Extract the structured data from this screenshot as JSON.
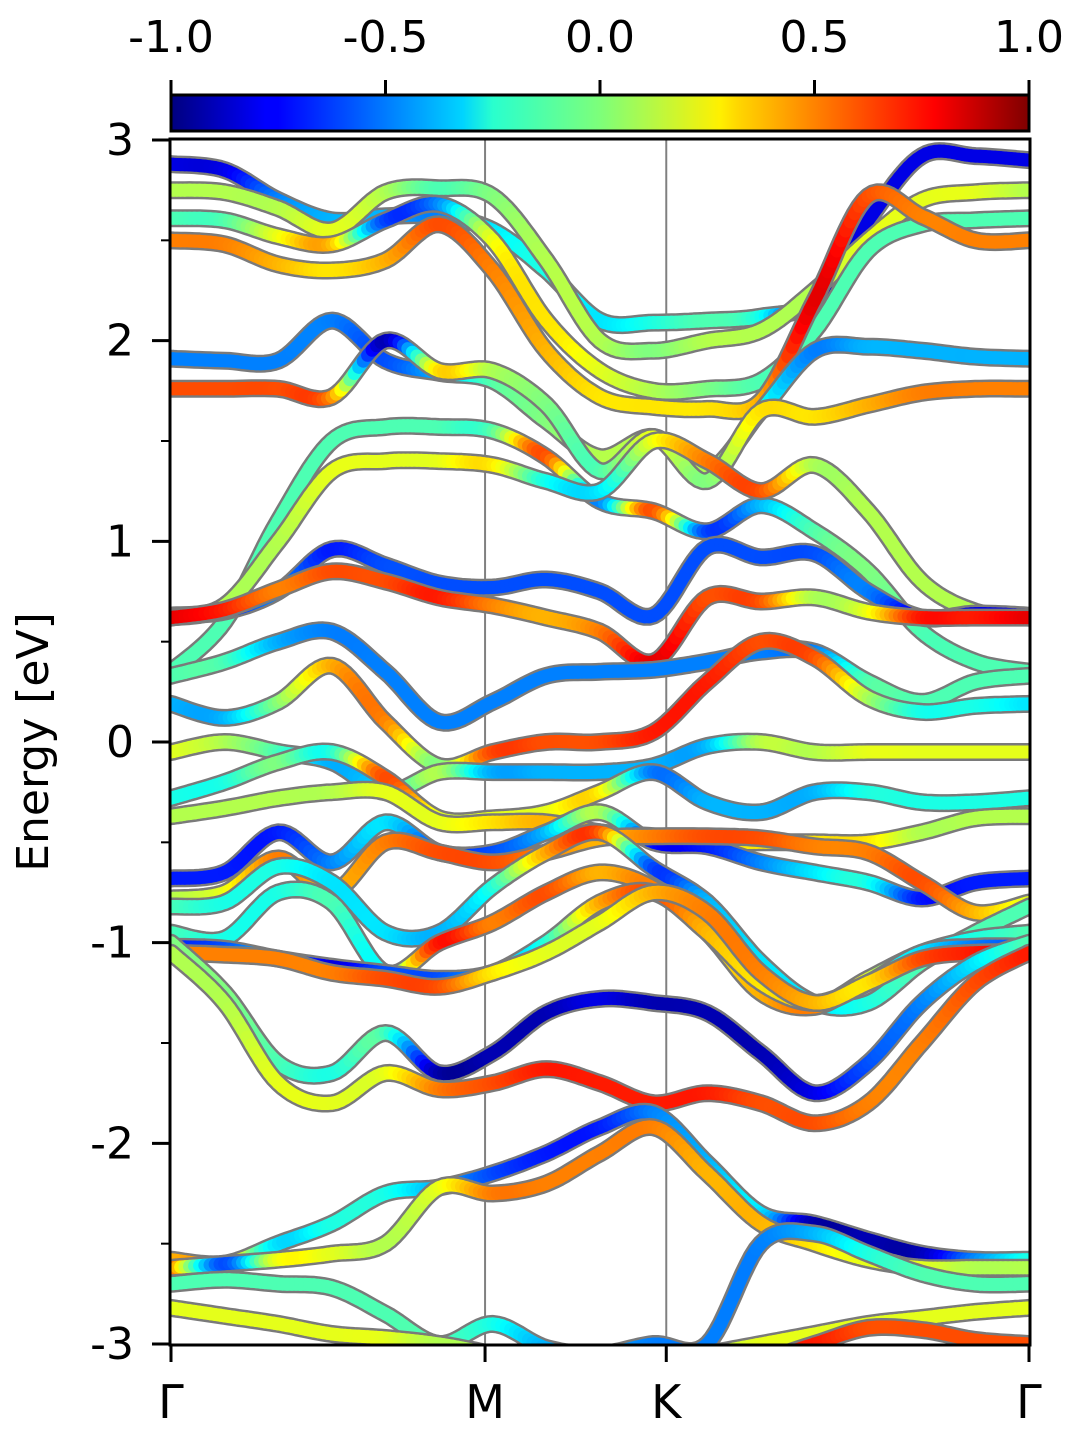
{
  "chart_data": {
    "type": "line",
    "ylabel": "Energy [eV]",
    "ylim": [
      -3,
      3
    ],
    "yticks": [
      -3,
      -2,
      -1,
      0,
      1,
      2,
      3
    ],
    "ytick_labels": [
      "-3",
      "-2",
      "-1",
      "0",
      "1",
      "2",
      "3"
    ],
    "kpath": {
      "labels": [
        "Γ",
        "M",
        "K",
        "Γ"
      ],
      "positions": [
        0,
        1,
        1.577,
        2.732
      ]
    },
    "colorbar": {
      "colormap": "jet",
      "range": [
        -1.0,
        1.0
      ],
      "ticks": [
        -1.0,
        -0.5,
        0.0,
        0.5,
        1.0
      ],
      "tick_labels": [
        "-1.0",
        "-0.5",
        "0.0",
        "0.5",
        "1.0"
      ],
      "location": "top"
    },
    "series": [
      {
        "y": [
          2.88,
          2.85,
          2.7,
          2.6,
          2.62,
          2.62,
          2.55,
          2.35,
          2.1,
          2.09,
          2.1,
          2.12,
          2.2,
          2.6,
          2.92,
          2.92,
          2.9
        ],
        "c": [
          -0.8,
          -0.8,
          -0.5,
          -0.4,
          -0.4,
          -0.5,
          -0.3,
          -0.2,
          -0.3,
          -0.2,
          -0.1,
          -0.2,
          -0.8,
          -0.8,
          -0.8,
          -0.8,
          -0.8
        ]
      },
      {
        "y": [
          2.75,
          2.74,
          2.66,
          2.55,
          2.74,
          2.76,
          2.72,
          2.4,
          2.0,
          1.95,
          2.0,
          2.05,
          2.25,
          2.5,
          2.7,
          2.74,
          2.75
        ],
        "c": [
          0.1,
          0.1,
          0.1,
          0.2,
          0.1,
          -0.1,
          0.0,
          0.1,
          0.1,
          0.0,
          0.1,
          0.1,
          0.1,
          0.2,
          0.2,
          0.2,
          0.1
        ]
      },
      {
        "y": [
          2.61,
          2.6,
          2.52,
          2.48,
          2.6,
          2.68,
          2.5,
          2.1,
          1.85,
          1.75,
          1.76,
          1.8,
          2.05,
          2.45,
          2.58,
          2.6,
          2.61
        ],
        "c": [
          -0.1,
          -0.1,
          0.2,
          0.4,
          -0.6,
          -0.5,
          0.2,
          0.3,
          0.2,
          0.1,
          0.0,
          -0.1,
          -0.1,
          -0.1,
          -0.1,
          -0.1,
          -0.1
        ]
      },
      {
        "y": [
          2.5,
          2.48,
          2.38,
          2.35,
          2.4,
          2.58,
          2.35,
          1.95,
          1.72,
          1.67,
          1.66,
          1.7,
          2.2,
          2.72,
          2.62,
          2.5,
          2.5
        ],
        "c": [
          0.5,
          0.5,
          0.4,
          0.3,
          0.4,
          0.6,
          0.5,
          0.4,
          0.3,
          0.3,
          0.3,
          0.4,
          0.8,
          0.6,
          0.5,
          0.5,
          0.5
        ]
      },
      {
        "y": [
          1.91,
          1.9,
          1.9,
          2.1,
          1.9,
          1.84,
          1.8,
          1.6,
          1.42,
          1.52,
          1.35,
          1.65,
          1.95,
          1.97,
          1.95,
          1.92,
          1.91
        ],
        "c": [
          -0.5,
          -0.5,
          -0.5,
          -0.5,
          -0.6,
          -0.4,
          -0.1,
          0.0,
          0.1,
          0.1,
          0.1,
          -0.2,
          -0.5,
          -0.4,
          -0.4,
          -0.4,
          -0.4
        ]
      },
      {
        "y": [
          1.76,
          1.76,
          1.76,
          1.72,
          2.0,
          1.85,
          1.85,
          1.68,
          1.35,
          1.52,
          1.3,
          1.65,
          1.62,
          1.68,
          1.74,
          1.76,
          1.76
        ],
        "c": [
          0.6,
          0.6,
          0.6,
          0.5,
          -0.9,
          0.3,
          0.1,
          0.0,
          -0.1,
          0.2,
          0.0,
          0.3,
          0.3,
          0.4,
          0.5,
          0.5,
          0.5
        ]
      },
      {
        "y": [
          0.35,
          0.6,
          1.1,
          1.5,
          1.57,
          1.57,
          1.55,
          1.42,
          1.2,
          1.15,
          1.05,
          1.18,
          1.05,
          0.85,
          0.55,
          0.4,
          0.35
        ],
        "c": [
          -0.1,
          -0.1,
          -0.1,
          -0.1,
          -0.1,
          -0.1,
          -0.1,
          0.6,
          -0.5,
          0.6,
          -0.6,
          -0.4,
          -0.1,
          0.0,
          -0.1,
          -0.1,
          -0.1
        ]
      },
      {
        "y": [
          0.62,
          0.68,
          1.0,
          1.35,
          1.4,
          1.4,
          1.38,
          1.3,
          1.25,
          1.5,
          1.4,
          1.25,
          1.38,
          1.15,
          0.8,
          0.65,
          0.62
        ],
        "c": [
          0.2,
          0.1,
          0.1,
          0.2,
          0.2,
          0.2,
          0.3,
          -0.2,
          -0.3,
          0.2,
          0.5,
          0.6,
          0.1,
          0.1,
          0.1,
          0.1,
          0.1
        ]
      },
      {
        "y": [
          0.63,
          0.65,
          0.75,
          0.96,
          0.88,
          0.79,
          0.77,
          0.81,
          0.75,
          0.63,
          0.97,
          0.92,
          0.94,
          0.75,
          0.62,
          0.64,
          0.63
        ],
        "c": [
          -0.7,
          -0.7,
          -0.5,
          -0.7,
          -0.6,
          -0.6,
          -0.6,
          -0.6,
          -0.6,
          -0.6,
          -0.6,
          -0.6,
          -0.6,
          -0.5,
          -0.8,
          -0.8,
          -0.8
        ]
      },
      {
        "y": [
          0.62,
          0.66,
          0.76,
          0.85,
          0.8,
          0.72,
          0.68,
          0.62,
          0.55,
          0.4,
          0.72,
          0.7,
          0.72,
          0.65,
          0.62,
          0.62,
          0.62
        ],
        "c": [
          0.8,
          0.7,
          0.5,
          0.6,
          0.6,
          0.7,
          0.5,
          0.4,
          0.5,
          0.8,
          0.6,
          0.6,
          0.1,
          0.2,
          0.7,
          0.7,
          0.8
        ]
      },
      {
        "y": [
          0.33,
          0.4,
          0.5,
          0.55,
          0.35,
          0.1,
          0.2,
          0.33,
          0.35,
          0.36,
          0.4,
          0.45,
          0.45,
          0.3,
          0.2,
          0.3,
          0.33
        ],
        "c": [
          -0.1,
          -0.1,
          -0.4,
          -0.5,
          -0.5,
          -0.5,
          -0.5,
          -0.5,
          -0.5,
          -0.5,
          -0.5,
          -0.5,
          -0.5,
          -0.1,
          -0.1,
          -0.1,
          -0.1
        ]
      },
      {
        "y": [
          0.19,
          0.12,
          0.2,
          0.38,
          0.1,
          -0.12,
          -0.05,
          0.0,
          0.0,
          0.05,
          0.3,
          0.5,
          0.42,
          0.22,
          0.15,
          0.18,
          0.19
        ],
        "c": [
          -0.4,
          -0.4,
          0.0,
          0.4,
          0.5,
          0.0,
          0.6,
          0.6,
          0.6,
          0.7,
          0.7,
          0.6,
          0.6,
          0.1,
          -0.2,
          -0.2,
          -0.3
        ]
      },
      {
        "y": [
          -0.05,
          0.0,
          -0.05,
          -0.1,
          -0.25,
          -0.15,
          -0.15,
          -0.15,
          -0.15,
          -0.12,
          -0.02,
          0.0,
          -0.05,
          -0.05,
          -0.05,
          -0.05,
          -0.05
        ],
        "c": [
          0.2,
          0.1,
          -0.1,
          -0.4,
          -0.3,
          0.1,
          -0.4,
          -0.4,
          -0.4,
          -0.4,
          -0.4,
          0.1,
          0.1,
          0.2,
          0.2,
          0.2,
          0.2
        ]
      },
      {
        "y": [
          -0.28,
          -0.2,
          -0.1,
          -0.05,
          -0.18,
          -0.38,
          -0.38,
          -0.35,
          -0.25,
          -0.15,
          -0.3,
          -0.35,
          -0.25,
          -0.25,
          -0.3,
          -0.3,
          -0.28
        ],
        "c": [
          -0.2,
          -0.2,
          0.0,
          -0.2,
          0.6,
          0.2,
          0.2,
          0.2,
          0.3,
          -0.5,
          -0.4,
          -0.4,
          -0.4,
          -0.2,
          -0.2,
          -0.2,
          -0.2
        ]
      },
      {
        "y": [
          -0.37,
          -0.33,
          -0.28,
          -0.25,
          -0.25,
          -0.4,
          -0.4,
          -0.4,
          -0.45,
          -0.47,
          -0.5,
          -0.5,
          -0.5,
          -0.5,
          -0.45,
          -0.38,
          -0.37
        ],
        "c": [
          0.1,
          0.1,
          0.1,
          0.1,
          0.2,
          0.2,
          0.3,
          0.4,
          0.3,
          0.2,
          0.2,
          0.3,
          0.3,
          0.3,
          0.1,
          0.1,
          0.1
        ]
      },
      {
        "y": [
          -0.68,
          -0.65,
          -0.45,
          -0.6,
          -0.4,
          -0.55,
          -0.55,
          -0.45,
          -0.35,
          -0.5,
          -0.52,
          -0.6,
          -0.65,
          -0.7,
          -0.78,
          -0.7,
          -0.68
        ],
        "c": [
          -0.7,
          -0.7,
          -0.7,
          -0.5,
          -0.3,
          -0.6,
          -0.6,
          -0.4,
          0.1,
          -0.7,
          -0.7,
          -0.5,
          -0.3,
          -0.2,
          -0.7,
          -0.7,
          -0.7
        ]
      },
      {
        "y": [
          -0.78,
          -0.75,
          -0.58,
          -0.75,
          -0.5,
          -0.55,
          -0.6,
          -0.55,
          -0.48,
          -0.47,
          -0.47,
          -0.48,
          -0.52,
          -0.55,
          -0.7,
          -0.85,
          -0.8
        ],
        "c": [
          0.1,
          0.2,
          0.5,
          0.4,
          0.5,
          0.6,
          0.6,
          0.5,
          0.4,
          0.5,
          0.6,
          0.6,
          0.5,
          0.5,
          0.6,
          0.4,
          0.2
        ]
      },
      {
        "y": [
          -0.82,
          -0.8,
          -0.62,
          -0.7,
          -0.95,
          -0.95,
          -0.72,
          -0.55,
          -0.45,
          -0.63,
          -0.8,
          -1.1,
          -1.3,
          -1.3,
          -1.1,
          -0.95,
          -0.82
        ],
        "c": [
          -0.1,
          -0.2,
          -0.2,
          -0.3,
          -0.3,
          -0.4,
          -0.2,
          0.4,
          0.6,
          -0.6,
          -0.4,
          -0.3,
          -0.3,
          -0.2,
          -0.1,
          -0.1,
          -0.1
        ]
      },
      {
        "y": [
          -0.95,
          -0.98,
          -0.75,
          -0.8,
          -1.15,
          -1.0,
          -0.9,
          -0.75,
          -0.65,
          -0.73,
          -0.95,
          -1.25,
          -1.32,
          -1.18,
          -1.05,
          -0.98,
          -0.95
        ],
        "c": [
          -0.1,
          -0.2,
          -0.2,
          -0.1,
          -0.2,
          0.7,
          0.5,
          0.6,
          0.4,
          0.5,
          0.3,
          0.4,
          0.5,
          0.2,
          -0.3,
          -0.2,
          -0.1
        ]
      },
      {
        "y": [
          -1.02,
          -1.03,
          -1.08,
          -1.12,
          -1.15,
          -1.18,
          -1.15,
          -1.0,
          -0.8,
          -0.75,
          -0.95,
          -1.2,
          -1.3,
          -1.2,
          -1.05,
          -1.02,
          -1.02
        ],
        "c": [
          -0.7,
          -0.6,
          -0.4,
          -0.8,
          -0.6,
          -0.6,
          -0.4,
          -0.2,
          0.4,
          0.6,
          0.4,
          0.3,
          0.3,
          -0.2,
          -0.3,
          -0.5,
          -0.6
        ]
      },
      {
        "y": [
          -1.05,
          -1.06,
          -1.08,
          -1.15,
          -1.18,
          -1.22,
          -1.15,
          -1.05,
          -0.9,
          -0.75,
          -0.85,
          -1.15,
          -1.3,
          -1.2,
          -1.08,
          -1.05,
          -1.05
        ],
        "c": [
          0.5,
          0.5,
          0.5,
          0.5,
          0.6,
          0.6,
          0.3,
          0.2,
          0.2,
          0.4,
          0.5,
          0.5,
          0.4,
          0.3,
          0.6,
          0.7,
          0.8
        ]
      },
      {
        "y": [
          -1.0,
          -1.25,
          -1.6,
          -1.65,
          -1.45,
          -1.65,
          -1.55,
          -1.35,
          -1.28,
          -1.3,
          -1.35,
          -1.55,
          -1.75,
          -1.6,
          -1.3,
          -1.1,
          -1.0
        ],
        "c": [
          0.0,
          0.0,
          -0.1,
          -0.2,
          -0.1,
          -0.9,
          -0.9,
          -0.9,
          -0.8,
          -0.9,
          -0.9,
          -0.9,
          -0.8,
          -0.6,
          -0.5,
          -0.3,
          -0.1
        ]
      },
      {
        "y": [
          -1.05,
          -1.3,
          -1.7,
          -1.8,
          -1.65,
          -1.73,
          -1.7,
          -1.63,
          -1.7,
          -1.8,
          -1.75,
          -1.8,
          -1.9,
          -1.8,
          -1.5,
          -1.2,
          -1.05
        ],
        "c": [
          0.1,
          0.1,
          0.2,
          0.2,
          0.2,
          0.5,
          0.6,
          0.7,
          0.7,
          0.7,
          0.7,
          0.6,
          0.6,
          0.5,
          0.5,
          0.6,
          0.7
        ]
      },
      {
        "y": [
          -2.58,
          -2.6,
          -2.5,
          -2.4,
          -2.25,
          -2.22,
          -2.15,
          -2.05,
          -1.92,
          -1.85,
          -2.1,
          -2.35,
          -2.4,
          -2.48,
          -2.55,
          -2.58,
          -2.58
        ],
        "c": [
          0.4,
          0.4,
          -0.3,
          -0.2,
          -0.2,
          -0.4,
          -0.6,
          -0.7,
          -0.7,
          -0.5,
          -0.4,
          -0.3,
          -0.9,
          -0.9,
          -0.9,
          -0.5,
          -0.2
        ]
      },
      {
        "y": [
          -2.62,
          -2.6,
          -2.58,
          -2.55,
          -2.5,
          -2.22,
          -2.25,
          -2.2,
          -2.05,
          -1.92,
          -2.15,
          -2.4,
          -2.5,
          -2.58,
          -2.62,
          -2.62,
          -2.62
        ],
        "c": [
          0.6,
          -0.6,
          0.2,
          0.2,
          0.1,
          0.2,
          0.5,
          0.5,
          0.5,
          0.5,
          0.4,
          0.4,
          0.3,
          0.2,
          0.2,
          0.1,
          0.1
        ]
      },
      {
        "y": [
          -2.7,
          -2.68,
          -2.7,
          -2.72,
          -2.85,
          -3.0,
          -2.9,
          -3.02,
          -3.05,
          -3.0,
          -3.0,
          -2.5,
          -2.45,
          -2.55,
          -2.65,
          -2.7,
          -2.7
        ],
        "c": [
          -0.1,
          -0.1,
          -0.1,
          -0.1,
          -0.1,
          -0.1,
          -0.2,
          -0.4,
          -0.4,
          -0.5,
          -0.5,
          -0.5,
          -0.4,
          -0.2,
          -0.1,
          -0.1,
          -0.1
        ]
      },
      {
        "y": [
          -2.82,
          -2.86,
          -2.9,
          -2.95,
          -2.97,
          -3.0,
          -3.05,
          -3.1,
          -3.1,
          -3.1,
          -3.05,
          -3.0,
          -2.95,
          -2.9,
          -2.87,
          -2.84,
          -2.82
        ],
        "c": [
          0.2,
          0.2,
          0.2,
          0.2,
          0.2,
          0.1,
          0.1,
          0.1,
          0.1,
          0.1,
          0.1,
          0.2,
          0.2,
          0.2,
          0.2,
          0.2,
          0.2
        ]
      },
      {
        "y": [
          -3.05,
          -3.06,
          -3.08,
          -3.1,
          -3.1,
          -3.1,
          -3.1,
          -3.1,
          -3.1,
          -3.1,
          -3.1,
          -3.08,
          -3.0,
          -2.92,
          -2.93,
          -2.98,
          -3.0
        ],
        "c": [
          0.6,
          0.6,
          0.6,
          0.6,
          0.6,
          0.6,
          0.6,
          0.6,
          0.6,
          0.6,
          0.6,
          0.6,
          0.7,
          0.6,
          0.6,
          0.6,
          0.6
        ]
      }
    ]
  }
}
